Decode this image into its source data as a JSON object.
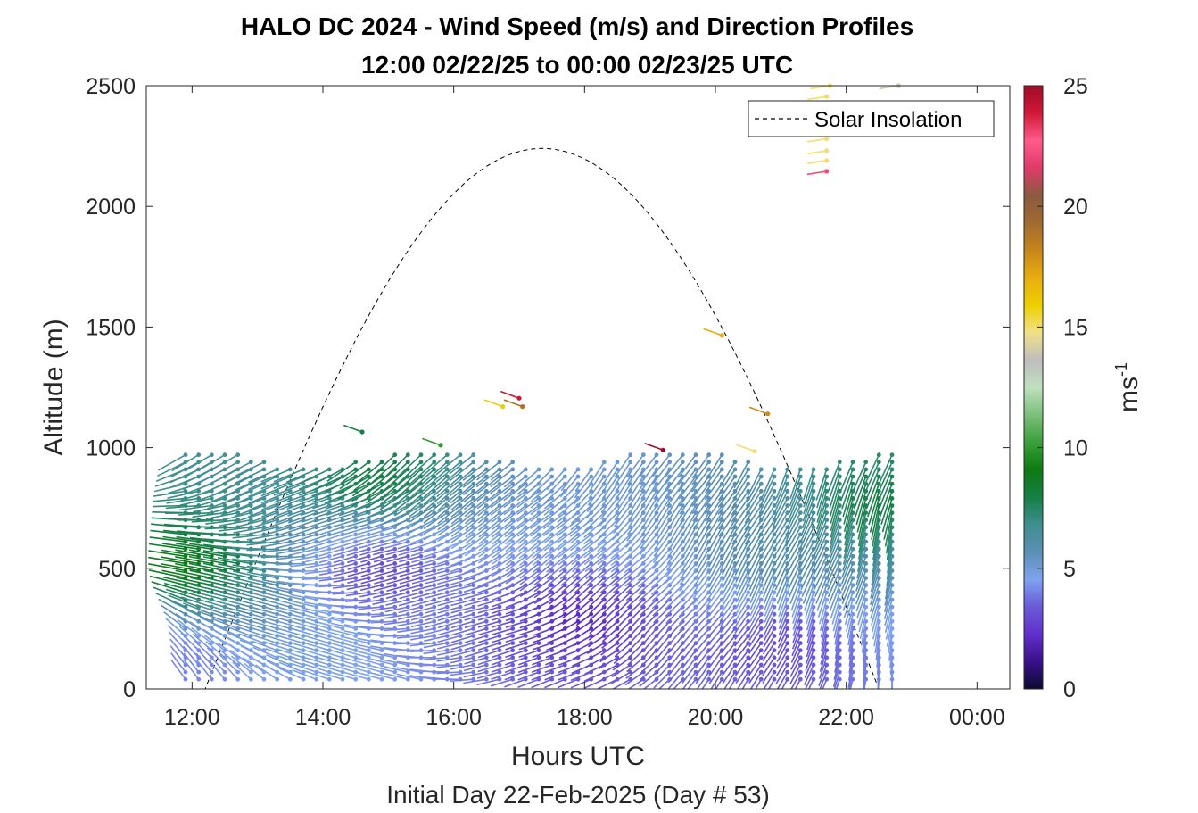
{
  "chart_data": {
    "type": "quiver",
    "title": "HALO DC 2024 - Wind Speed (m/s) and Direction Profiles",
    "subtitle": "12:00 02/22/25 to 00:00 02/23/25  UTC",
    "xlabel": "Hours UTC",
    "sublabel": "Initial Day 22-Feb-2025 (Day # 53)",
    "ylabel": "Altitude (m)",
    "xlim": [
      11.3,
      24.5
    ],
    "ylim": [
      0,
      2500
    ],
    "x_ticks": [
      12,
      14,
      16,
      18,
      20,
      22,
      24
    ],
    "x_tick_labels": [
      "12:00",
      "14:00",
      "16:00",
      "18:00",
      "20:00",
      "22:00",
      "00:00"
    ],
    "y_ticks": [
      0,
      500,
      1000,
      1500,
      2000,
      2500
    ],
    "y_tick_labels": [
      "0",
      "500",
      "1000",
      "1500",
      "2000",
      "2500"
    ],
    "colorbar": {
      "label": "ms",
      "label_exponent": "-1",
      "range": [
        0,
        25
      ],
      "ticks": [
        0,
        5,
        10,
        15,
        20,
        25
      ],
      "tick_labels": [
        "0",
        "5",
        "10",
        "15",
        "20",
        "25"
      ],
      "colors": [
        "#0b0b2e",
        "#3a0f8a",
        "#6230cc",
        "#6a5ad8",
        "#7fa3f0",
        "#5a8fb4",
        "#3f8f8f",
        "#157f45",
        "#0e7a12",
        "#3aa03a",
        "#7cc07c",
        "#c0e0c0",
        "#bdbdbd",
        "#f2e088",
        "#eed000",
        "#e8ac10",
        "#c8861a",
        "#a06a30",
        "#8a5a40",
        "#e03a6a",
        "#ff5a8a",
        "#d01838",
        "#a00c28"
      ]
    },
    "legend": {
      "position": "top-right",
      "entries": [
        {
          "label": "Solar Insolation",
          "style": "dashed",
          "color": "#000000"
        }
      ]
    },
    "solar_insolation": {
      "sunrise_hour": 12.2,
      "sunset_hour": 22.5,
      "peak_hour": 17.35,
      "peak_altitude_equiv": 2240
    },
    "profiles": {
      "time_start": 11.9,
      "time_end": 22.8,
      "interval_hours": 0.2,
      "altitude_bottom": 40,
      "altitude_step": 30,
      "typical_top_altitude": 1000,
      "representative_speeds_ms": [
        {
          "hour": 12,
          "altitude": 100,
          "speed": 4
        },
        {
          "hour": 12,
          "altitude": 500,
          "speed": 9
        },
        {
          "hour": 15,
          "altitude": 500,
          "speed": 3
        },
        {
          "hour": 15,
          "altitude": 900,
          "speed": 8
        },
        {
          "hour": 18,
          "altitude": 300,
          "speed": 2
        },
        {
          "hour": 18,
          "altitude": 800,
          "speed": 5
        },
        {
          "hour": 21,
          "altitude": 200,
          "speed": 3
        },
        {
          "hour": 21,
          "altitude": 600,
          "speed": 6
        },
        {
          "hour": 22.5,
          "altitude": 800,
          "speed": 8
        }
      ]
    },
    "upper_points": [
      {
        "x": 14.6,
        "y": 1065,
        "speed": 8
      },
      {
        "x": 15.8,
        "y": 1010,
        "speed": 10
      },
      {
        "x": 16.75,
        "y": 1170,
        "speed": 16
      },
      {
        "x": 17.0,
        "y": 1205,
        "speed": 24
      },
      {
        "x": 17.05,
        "y": 1170,
        "speed": 19
      },
      {
        "x": 19.2,
        "y": 990,
        "speed": 25
      },
      {
        "x": 20.1,
        "y": 1465,
        "speed": 17
      },
      {
        "x": 20.6,
        "y": 985,
        "speed": 15
      },
      {
        "x": 20.8,
        "y": 1140,
        "speed": 18
      },
      {
        "x": 21.7,
        "y": 2145,
        "speed": 23
      },
      {
        "x": 21.7,
        "y": 2190,
        "speed": 15
      },
      {
        "x": 21.7,
        "y": 2230,
        "speed": 15
      },
      {
        "x": 21.7,
        "y": 2280,
        "speed": 15
      },
      {
        "x": 21.7,
        "y": 2320,
        "speed": 15
      },
      {
        "x": 21.7,
        "y": 2365,
        "speed": 15
      },
      {
        "x": 21.7,
        "y": 2410,
        "speed": 15
      },
      {
        "x": 21.7,
        "y": 2455,
        "speed": 15
      },
      {
        "x": 21.75,
        "y": 2500,
        "speed": 15
      },
      {
        "x": 22.8,
        "y": 2500,
        "speed": 14
      }
    ]
  }
}
